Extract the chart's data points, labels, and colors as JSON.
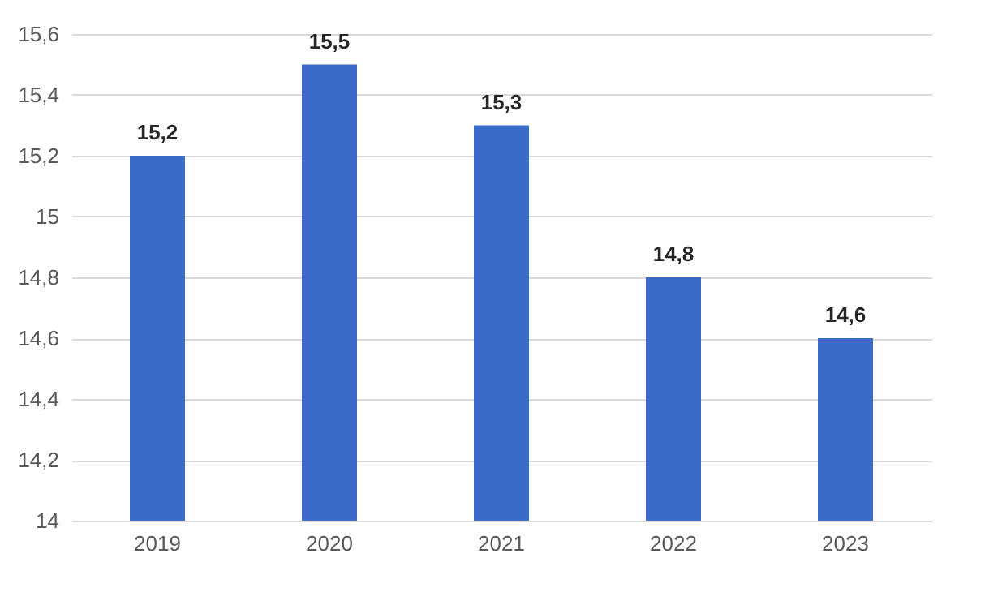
{
  "chart_data": {
    "type": "bar",
    "categories": [
      "2019",
      "2020",
      "2021",
      "2022",
      "2023"
    ],
    "values": [
      15.2,
      15.5,
      15.3,
      14.8,
      14.6
    ],
    "value_labels": [
      "15,2",
      "15,5",
      "15,3",
      "14,8",
      "14,6"
    ],
    "color": "#3a6bc8",
    "ylim": [
      14,
      15.6
    ],
    "yticks": [
      14,
      {
        "value": 14.2,
        "label": "14,2"
      },
      {
        "value": 14.4,
        "label": "14,4"
      },
      {
        "value": 14.6,
        "label": "14,6"
      },
      {
        "value": 14.8,
        "label": "14,8"
      },
      15,
      {
        "value": 15.2,
        "label": "15,2"
      },
      {
        "value": 15.4,
        "label": "15,4"
      },
      {
        "value": 15.6,
        "label": "15,6"
      }
    ],
    "grid": "y",
    "legend": false
  }
}
